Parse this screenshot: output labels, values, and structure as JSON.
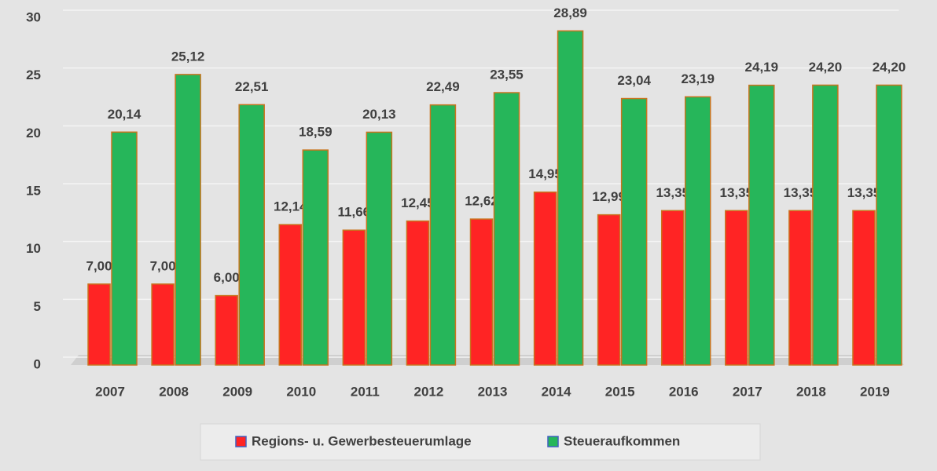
{
  "chart_data": {
    "type": "bar",
    "categories": [
      "2007",
      "2008",
      "2009",
      "2010",
      "2011",
      "2012",
      "2013",
      "2014",
      "2015",
      "2016",
      "2017",
      "2018",
      "2019"
    ],
    "series": [
      {
        "name": "Regions- u. Gewerbesteuerumlage",
        "color": "#ff2424",
        "values": [
          7.0,
          7.0,
          6.0,
          12.14,
          11.66,
          12.45,
          12.62,
          14.95,
          12.99,
          13.35,
          13.35,
          13.35,
          13.35
        ],
        "value_labels": [
          "7,00",
          "7,00",
          "6,00",
          "12,14",
          "11,66",
          "12,45",
          "12,62",
          "14,95",
          "12,99",
          "13,35",
          "13,35",
          "13,35",
          "13,35"
        ]
      },
      {
        "name": "Steueraufkommen",
        "color": "#26b65a",
        "values": [
          20.14,
          25.12,
          22.51,
          18.59,
          20.13,
          22.49,
          23.55,
          28.89,
          23.04,
          23.19,
          24.19,
          24.2,
          24.2
        ],
        "value_labels": [
          "20,14",
          "25,12",
          "22,51",
          "18,59",
          "20,13",
          "22,49",
          "23,55",
          "28,89",
          "23,04",
          "23,19",
          "24,19",
          "24,20",
          "24,20"
        ]
      }
    ],
    "ylim": [
      0,
      30
    ],
    "yticks": [
      0,
      5,
      10,
      15,
      20,
      25,
      30
    ],
    "grid": true,
    "legend": "bottom"
  }
}
